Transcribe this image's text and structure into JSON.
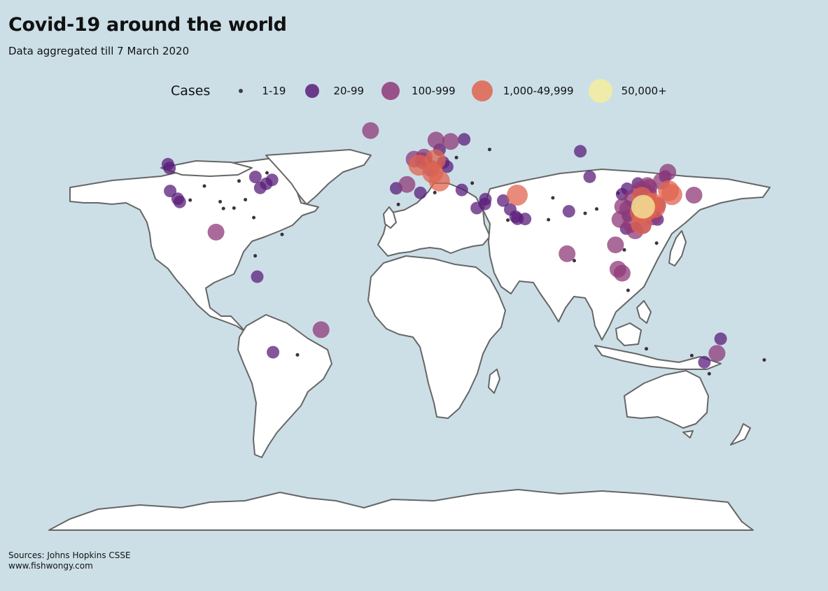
{
  "title": "Covid-19 around the world",
  "subtitle": "Data aggregated till 7 March 2020",
  "sources": {
    "line1": "Sources: Johns Hopkins CSSE",
    "line2": " www.fishwongy.com"
  },
  "colors": {
    "background": "#ccdfe7",
    "land": "#ffffff",
    "border": "#666666"
  },
  "legend": {
    "title": "Cases",
    "items": [
      {
        "label": "1-19",
        "color": "#2b1b2e"
      },
      {
        "label": "20-99",
        "color": "#5a1d7a"
      },
      {
        "label": "100-999",
        "color": "#8e3a78"
      },
      {
        "label": "1,000-49,999",
        "color": "#e0644f"
      },
      {
        "label": "50,000+",
        "color": "#f3ef9c"
      }
    ]
  },
  "chart_data": {
    "type": "scatter",
    "map": "world",
    "size_legend": [
      "1-19",
      "20-99",
      "100-999",
      "1,000-49,999",
      "50,000+"
    ],
    "points": [
      {
        "lon": -122.3,
        "lat": 47.6,
        "bin": 1
      },
      {
        "lon": -122.0,
        "lat": 37.5,
        "bin": 1
      },
      {
        "lon": -118.2,
        "lat": 34.1,
        "bin": 1
      },
      {
        "lon": -117.2,
        "lat": 32.7,
        "bin": 1
      },
      {
        "lon": -112.0,
        "lat": 33.5,
        "bin": 0
      },
      {
        "lon": -104.9,
        "lat": 39.7,
        "bin": 0
      },
      {
        "lon": -97.0,
        "lat": 32.8,
        "bin": 0
      },
      {
        "lon": -95.4,
        "lat": 29.8,
        "bin": 0
      },
      {
        "lon": -90.1,
        "lat": 30.0,
        "bin": 0
      },
      {
        "lon": -87.6,
        "lat": 41.9,
        "bin": 0
      },
      {
        "lon": -84.4,
        "lat": 33.7,
        "bin": 0
      },
      {
        "lon": -80.2,
        "lat": 25.8,
        "bin": 0
      },
      {
        "lon": -77.0,
        "lat": 38.9,
        "bin": 1
      },
      {
        "lon": -74.0,
        "lat": 40.7,
        "bin": 1
      },
      {
        "lon": -71.1,
        "lat": 42.4,
        "bin": 1
      },
      {
        "lon": -79.4,
        "lat": 43.7,
        "bin": 1
      },
      {
        "lon": -73.6,
        "lat": 45.5,
        "bin": 0
      },
      {
        "lon": -123.1,
        "lat": 49.3,
        "bin": 1
      },
      {
        "lon": -99.1,
        "lat": 19.4,
        "bin": 2
      },
      {
        "lon": -66.1,
        "lat": 18.4,
        "bin": 0
      },
      {
        "lon": -79.5,
        "lat": 9.0,
        "bin": 0
      },
      {
        "lon": -78.5,
        "lat": -0.2,
        "bin": 1
      },
      {
        "lon": -46.6,
        "lat": -23.5,
        "bin": 2
      },
      {
        "lon": -70.6,
        "lat": -33.4,
        "bin": 1
      },
      {
        "lon": -58.4,
        "lat": -34.6,
        "bin": 0
      },
      {
        "lon": -21.9,
        "lat": 64.1,
        "bin": 2
      },
      {
        "lon": -0.1,
        "lat": 51.5,
        "bin": 2
      },
      {
        "lon": -3.7,
        "lat": 40.4,
        "bin": 2
      },
      {
        "lon": 2.3,
        "lat": 48.9,
        "bin": 3
      },
      {
        "lon": 8.5,
        "lat": 47.4,
        "bin": 2
      },
      {
        "lon": 10.5,
        "lat": 51.2,
        "bin": 3
      },
      {
        "lon": 9.2,
        "lat": 45.5,
        "bin": 3
      },
      {
        "lon": 12.5,
        "lat": 41.9,
        "bin": 3
      },
      {
        "lon": 4.9,
        "lat": 52.4,
        "bin": 2
      },
      {
        "lon": 4.4,
        "lat": 50.8,
        "bin": 2
      },
      {
        "lon": 18.1,
        "lat": 59.3,
        "bin": 2
      },
      {
        "lon": 10.8,
        "lat": 59.9,
        "bin": 2
      },
      {
        "lon": 24.9,
        "lat": 60.2,
        "bin": 1
      },
      {
        "lon": 12.6,
        "lat": 55.7,
        "bin": 1
      },
      {
        "lon": 16.4,
        "lat": 48.2,
        "bin": 1
      },
      {
        "lon": 14.4,
        "lat": 50.1,
        "bin": 1
      },
      {
        "lon": 21.0,
        "lat": 52.2,
        "bin": 0
      },
      {
        "lon": 23.7,
        "lat": 37.98,
        "bin": 1
      },
      {
        "lon": 28.9,
        "lat": 41.0,
        "bin": 0
      },
      {
        "lon": -9.1,
        "lat": 38.7,
        "bin": 1
      },
      {
        "lon": -8.0,
        "lat": 31.6,
        "bin": 0
      },
      {
        "lon": 3.0,
        "lat": 36.7,
        "bin": 1
      },
      {
        "lon": 10.2,
        "lat": 36.8,
        "bin": 0
      },
      {
        "lon": 31.2,
        "lat": 30.0,
        "bin": 1
      },
      {
        "lon": 35.5,
        "lat": 33.9,
        "bin": 1
      },
      {
        "lon": 35.2,
        "lat": 31.8,
        "bin": 1
      },
      {
        "lon": 51.4,
        "lat": 35.7,
        "bin": 3
      },
      {
        "lon": 47.9,
        "lat": 29.4,
        "bin": 1
      },
      {
        "lon": 50.6,
        "lat": 26.2,
        "bin": 1
      },
      {
        "lon": 51.5,
        "lat": 25.3,
        "bin": 1
      },
      {
        "lon": 55.3,
        "lat": 25.2,
        "bin": 1
      },
      {
        "lon": 44.4,
        "lat": 33.3,
        "bin": 1
      },
      {
        "lon": 46.7,
        "lat": 24.7,
        "bin": 0
      },
      {
        "lon": 69.2,
        "lat": 34.5,
        "bin": 0
      },
      {
        "lon": 67.0,
        "lat": 24.9,
        "bin": 0
      },
      {
        "lon": 77.2,
        "lat": 28.6,
        "bin": 1
      },
      {
        "lon": 76.3,
        "lat": 9.9,
        "bin": 2
      },
      {
        "lon": 79.9,
        "lat": 6.9,
        "bin": 0
      },
      {
        "lon": 85.3,
        "lat": 27.7,
        "bin": 0
      },
      {
        "lon": 100.5,
        "lat": 13.8,
        "bin": 2
      },
      {
        "lon": 105.8,
        "lat": 21.0,
        "bin": 1
      },
      {
        "lon": 104.9,
        "lat": 11.6,
        "bin": 0
      },
      {
        "lon": 101.7,
        "lat": 3.1,
        "bin": 2
      },
      {
        "lon": 103.8,
        "lat": 1.35,
        "bin": 2
      },
      {
        "lon": 106.8,
        "lat": -6.2,
        "bin": 0
      },
      {
        "lon": 121.0,
        "lat": 14.6,
        "bin": 0
      },
      {
        "lon": 114.2,
        "lat": 22.3,
        "bin": 2
      },
      {
        "lon": 121.5,
        "lat": 25.0,
        "bin": 1
      },
      {
        "lon": 127.0,
        "lat": 37.6,
        "bin": 3
      },
      {
        "lon": 128.6,
        "lat": 35.9,
        "bin": 3
      },
      {
        "lon": 139.7,
        "lat": 35.7,
        "bin": 2
      },
      {
        "lon": 114.3,
        "lat": 30.6,
        "bin": 4
      },
      {
        "lon": 113.3,
        "lat": 23.1,
        "bin": 3
      },
      {
        "lon": 120.2,
        "lat": 30.3,
        "bin": 3
      },
      {
        "lon": 113.6,
        "lat": 34.7,
        "bin": 3
      },
      {
        "lon": 112.9,
        "lat": 28.2,
        "bin": 3
      },
      {
        "lon": 115.9,
        "lat": 28.7,
        "bin": 3
      },
      {
        "lon": 117.3,
        "lat": 31.8,
        "bin": 3
      },
      {
        "lon": 104.1,
        "lat": 30.7,
        "bin": 2
      },
      {
        "lon": 106.6,
        "lat": 29.6,
        "bin": 2
      },
      {
        "lon": 116.4,
        "lat": 39.9,
        "bin": 2
      },
      {
        "lon": 121.5,
        "lat": 31.2,
        "bin": 2
      },
      {
        "lon": 126.6,
        "lat": 45.8,
        "bin": 2
      },
      {
        "lon": 117.0,
        "lat": 36.7,
        "bin": 2
      },
      {
        "lon": 118.8,
        "lat": 32.1,
        "bin": 3
      },
      {
        "lon": 108.9,
        "lat": 34.3,
        "bin": 2
      },
      {
        "lon": 108.3,
        "lat": 22.8,
        "bin": 2
      },
      {
        "lon": 119.3,
        "lat": 26.1,
        "bin": 2
      },
      {
        "lon": 114.5,
        "lat": 38.0,
        "bin": 2
      },
      {
        "lon": 102.7,
        "lat": 25.0,
        "bin": 2
      },
      {
        "lon": 106.7,
        "lat": 26.6,
        "bin": 1
      },
      {
        "lon": 112.5,
        "lat": 37.9,
        "bin": 2
      },
      {
        "lon": 111.7,
        "lat": 40.8,
        "bin": 1
      },
      {
        "lon": 123.4,
        "lat": 41.8,
        "bin": 2
      },
      {
        "lon": 125.3,
        "lat": 43.9,
        "bin": 1
      },
      {
        "lon": 103.8,
        "lat": 36.1,
        "bin": 1
      },
      {
        "lon": 87.6,
        "lat": 43.8,
        "bin": 1
      },
      {
        "lon": 91.1,
        "lat": 29.6,
        "bin": 0
      },
      {
        "lon": 101.8,
        "lat": 36.6,
        "bin": 0
      },
      {
        "lon": 106.3,
        "lat": 38.5,
        "bin": 1
      },
      {
        "lon": 110.3,
        "lat": 20.0,
        "bin": 2
      },
      {
        "lon": 117.2,
        "lat": 39.1,
        "bin": 2
      },
      {
        "lon": 37.6,
        "lat": 55.8,
        "bin": 0
      },
      {
        "lon": 82.9,
        "lat": 55.0,
        "bin": 1
      },
      {
        "lon": 144.9,
        "lat": -37.8,
        "bin": 1
      },
      {
        "lon": 151.2,
        "lat": -33.9,
        "bin": 2
      },
      {
        "lon": 153.0,
        "lat": -27.5,
        "bin": 1
      },
      {
        "lon": 138.6,
        "lat": -34.9,
        "bin": 0
      },
      {
        "lon": 115.9,
        "lat": -31.9,
        "bin": 0
      },
      {
        "lon": 147.3,
        "lat": -42.9,
        "bin": 0
      },
      {
        "lon": 174.8,
        "lat": -36.8,
        "bin": 0
      }
    ]
  }
}
